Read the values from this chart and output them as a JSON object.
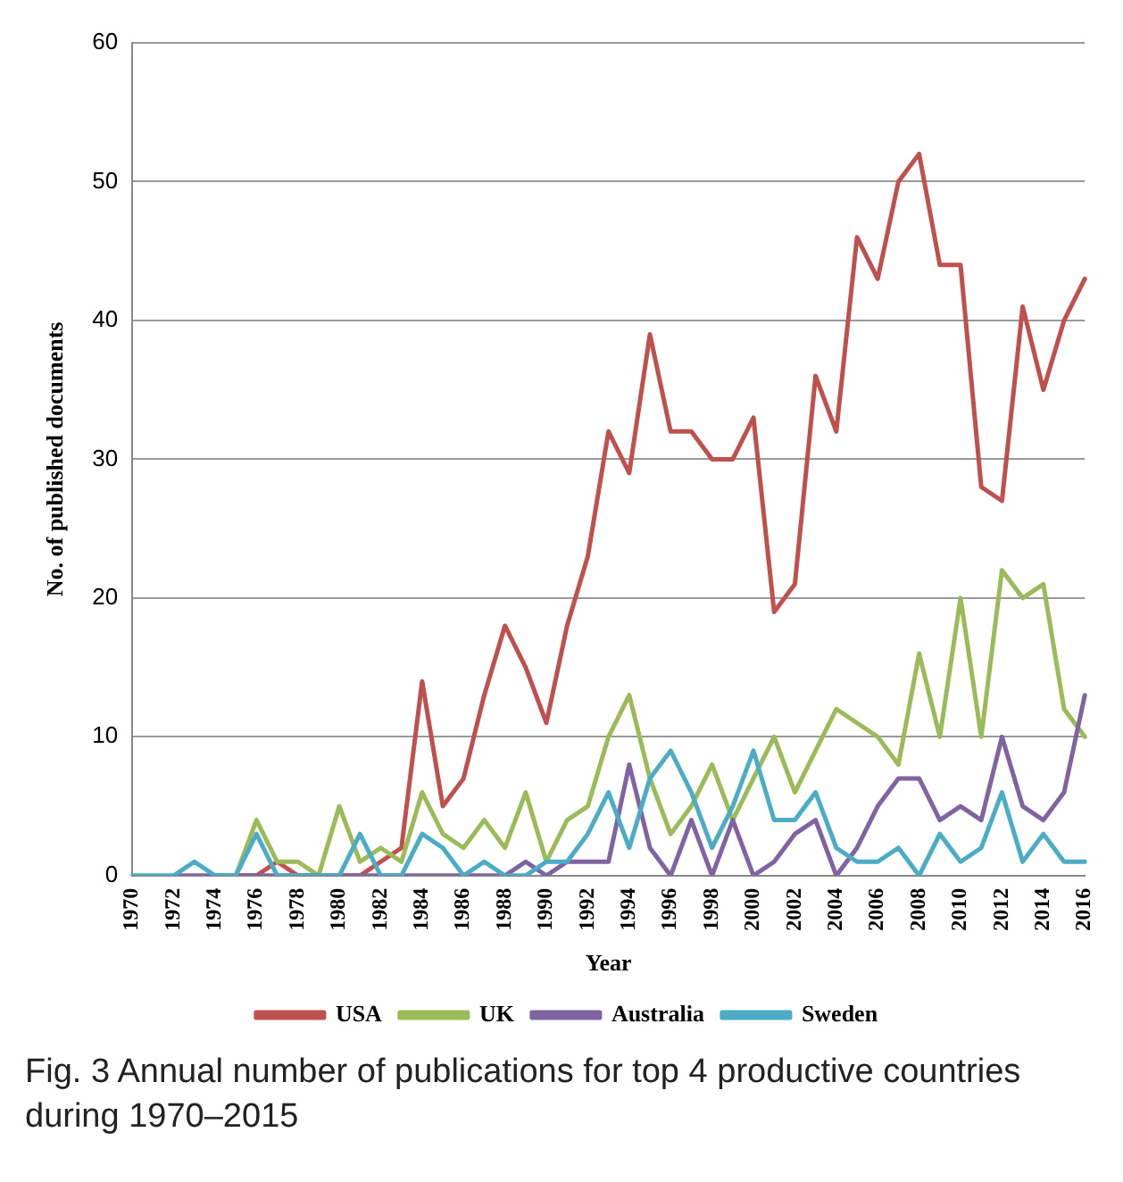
{
  "chart_data": {
    "type": "line",
    "xlabel": "Year",
    "ylabel": "No. of published documents",
    "categories": [
      "1970",
      null,
      "1972",
      null,
      "1974",
      null,
      "1976",
      null,
      "1978",
      null,
      "1980",
      null,
      "1982",
      null,
      "1984",
      null,
      "1986",
      null,
      "1988",
      null,
      "1990",
      null,
      "1992",
      null,
      "1994",
      null,
      "1996",
      null,
      "1998",
      null,
      "2000",
      null,
      "2002",
      null,
      "2004",
      null,
      "2006",
      null,
      "2008",
      null,
      "2010",
      null,
      "2012",
      null,
      "2014",
      null,
      "2016"
    ],
    "series": [
      {
        "name": "USA",
        "color": "#c0504d",
        "values": [
          null,
          null,
          null,
          null,
          null,
          0,
          0,
          1,
          0,
          0,
          0,
          0,
          1,
          2,
          14,
          5,
          7,
          13,
          18,
          15,
          11,
          18,
          23,
          32,
          29,
          39,
          32,
          32,
          30,
          30,
          33,
          19,
          21,
          36,
          32,
          46,
          43,
          50,
          52,
          44,
          44,
          28,
          27,
          41,
          35,
          40,
          43
        ]
      },
      {
        "name": "UK",
        "color": "#9bbb59",
        "values": [
          null,
          null,
          null,
          null,
          null,
          0,
          4,
          1,
          1,
          0,
          5,
          1,
          2,
          1,
          6,
          3,
          2,
          4,
          2,
          6,
          1,
          4,
          5,
          10,
          13,
          7,
          3,
          5,
          8,
          4,
          7,
          10,
          6,
          9,
          12,
          11,
          10,
          8,
          16,
          10,
          20,
          10,
          22,
          20,
          21,
          12,
          10
        ]
      },
      {
        "name": "Australia",
        "color": "#8064a2",
        "values": [
          null,
          null,
          0,
          0,
          0,
          0,
          0,
          0,
          0,
          0,
          0,
          0,
          0,
          0,
          0,
          0,
          0,
          0,
          0,
          1,
          0,
          1,
          1,
          1,
          8,
          2,
          0,
          4,
          0,
          4,
          0,
          1,
          3,
          4,
          0,
          2,
          5,
          7,
          7,
          4,
          5,
          4,
          10,
          5,
          4,
          6,
          13
        ]
      },
      {
        "name": "Sweden",
        "color": "#4bacc6",
        "values": [
          0,
          0,
          0,
          1,
          0,
          0,
          3,
          0,
          0,
          0,
          0,
          3,
          0,
          0,
          3,
          2,
          0,
          1,
          0,
          0,
          1,
          1,
          3,
          6,
          2,
          7,
          9,
          6,
          2,
          5,
          9,
          4,
          4,
          6,
          2,
          1,
          1,
          2,
          0,
          3,
          1,
          2,
          6,
          1,
          3,
          1,
          1
        ]
      }
    ],
    "ylim": [
      0,
      60
    ],
    "yticks": [
      0,
      10,
      20,
      30,
      40,
      50,
      60
    ],
    "grid": "y",
    "legend": "bottom",
    "marker": "none",
    "line_style": "solid",
    "annotations": [
      "Fig. 3 Annual number of publications for top 4 productive countries during 1970–2015"
    ]
  }
}
